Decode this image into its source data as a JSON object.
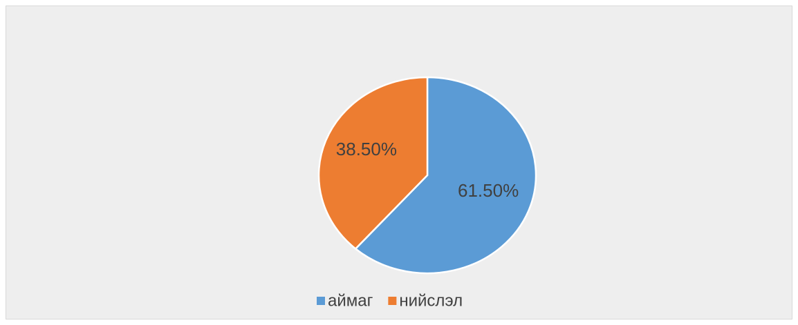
{
  "chart_data": {
    "type": "pie",
    "categories": [
      "аймаг",
      "нийслэл"
    ],
    "values": [
      61.5,
      38.5
    ],
    "value_labels": [
      "61.50%",
      "38.50%"
    ],
    "colors": [
      "#5b9bd5",
      "#ed7d31"
    ],
    "legend": "bottom"
  }
}
